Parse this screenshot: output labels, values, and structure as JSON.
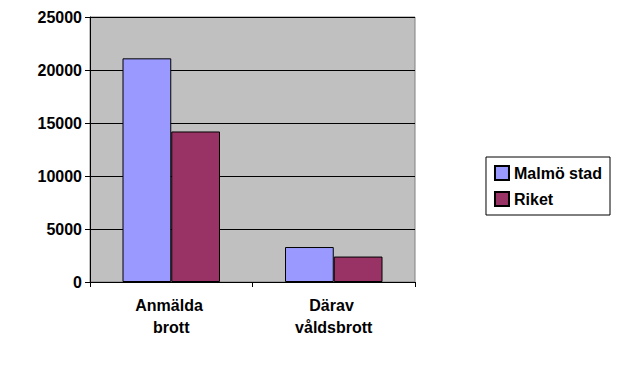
{
  "chart_data": {
    "type": "bar",
    "categories": [
      "Anmälda brott",
      "Därav våldsbrott"
    ],
    "series": [
      {
        "name": "Malmö stad",
        "color": "#9999ff",
        "values": [
          21100,
          3300
        ]
      },
      {
        "name": "Riket",
        "color": "#993366",
        "values": [
          14200,
          2400
        ]
      }
    ],
    "ylim": [
      0,
      25000
    ],
    "yticks": [
      0,
      5000,
      10000,
      15000,
      20000,
      25000
    ],
    "grid": true,
    "legend": "right"
  }
}
